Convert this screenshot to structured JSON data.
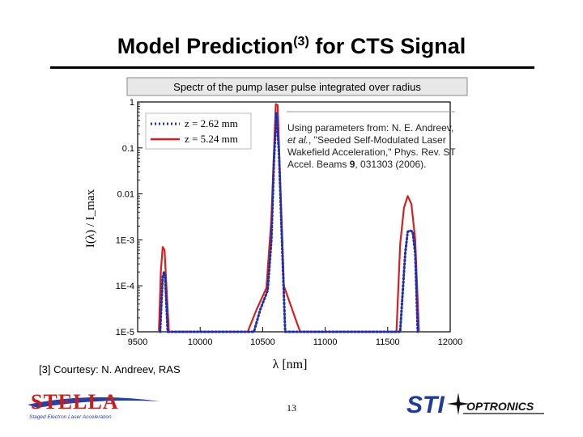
{
  "slide": {
    "title_main": "Model Prediction",
    "title_sup": "(3)",
    "title_end": " for CTS Signal",
    "citation": {
      "line_a": "Using parameters from: N. E. Andreev, ",
      "et_al": "et al.",
      "line_b": ", \"Seeded Self-Modulated Laser Wakefield Acceleration,\" Phys. Rev. ST Accel. Beams ",
      "volume": "9",
      "line_c": ", 031303 (2006)."
    },
    "courtesy": "[3] Courtesy: N. Andreev, RAS",
    "page_number": "13",
    "logos": {
      "stella_text": "STELLA",
      "stella_subtitle": "Staged Electron Laser Acceleration",
      "sti_text": "STI",
      "sti_sub": "OPTRONICS"
    }
  },
  "chart_data": {
    "type": "line",
    "title": "Spectr of the pump laser pulse integrated over radius",
    "xlabel": "λ [nm]",
    "ylabel": "I(λ) / I_max",
    "xlim": [
      9500,
      12000
    ],
    "ylim": [
      1e-05,
      1
    ],
    "yscale": "log",
    "x_ticks": [
      9500,
      10000,
      10500,
      11000,
      11500,
      12000
    ],
    "y_ticks": [
      {
        "value": 1,
        "label": "1"
      },
      {
        "value": 0.1,
        "label": "0.1"
      },
      {
        "value": 0.01,
        "label": "0.01"
      },
      {
        "value": 0.001,
        "label": "1E-3"
      },
      {
        "value": 0.0001,
        "label": "1E-4"
      },
      {
        "value": 1e-05,
        "label": "1E-5"
      }
    ],
    "grid": false,
    "legend_position": "top-left",
    "series": [
      {
        "name": "z = 2.62 mm",
        "color": "#1f2fa8",
        "style": "dotted",
        "points": [
          [
            9680,
            1e-05
          ],
          [
            9690,
            4e-05
          ],
          [
            9700,
            0.00015
          ],
          [
            9710,
            0.0002
          ],
          [
            9720,
            0.00015
          ],
          [
            9730,
            4e-05
          ],
          [
            9740,
            1e-05
          ],
          [
            10430,
            1e-05
          ],
          [
            10480,
            3e-05
          ],
          [
            10540,
            8e-05
          ],
          [
            10570,
            0.001
          ],
          [
            10590,
            0.05
          ],
          [
            10610,
            0.6
          ],
          [
            10630,
            0.08
          ],
          [
            10650,
            0.002
          ],
          [
            10680,
            1e-05
          ],
          [
            11600,
            1e-05
          ],
          [
            11640,
            0.0005
          ],
          [
            11660,
            0.0015
          ],
          [
            11680,
            0.0016
          ],
          [
            11700,
            0.0015
          ],
          [
            11720,
            0.0005
          ],
          [
            11740,
            1e-05
          ]
        ]
      },
      {
        "name": "z = 5.24 mm",
        "color": "#d62020",
        "style": "solid",
        "points": [
          [
            9670,
            1e-05
          ],
          [
            9685,
            0.0002
          ],
          [
            9700,
            0.0007
          ],
          [
            9715,
            0.0006
          ],
          [
            9730,
            0.0001
          ],
          [
            9750,
            1e-05
          ],
          [
            10380,
            1e-05
          ],
          [
            10450,
            3e-05
          ],
          [
            10530,
            9e-05
          ],
          [
            10570,
            0.003
          ],
          [
            10590,
            0.08
          ],
          [
            10605,
            0.9
          ],
          [
            10620,
            0.85
          ],
          [
            10640,
            0.02
          ],
          [
            10670,
            0.0001
          ],
          [
            10760,
            2e-05
          ],
          [
            10800,
            1e-05
          ],
          [
            11570,
            1e-05
          ],
          [
            11600,
            0.0008
          ],
          [
            11630,
            0.005
          ],
          [
            11660,
            0.009
          ],
          [
            11690,
            0.006
          ],
          [
            11720,
            0.001
          ],
          [
            11750,
            1e-05
          ]
        ]
      }
    ]
  }
}
